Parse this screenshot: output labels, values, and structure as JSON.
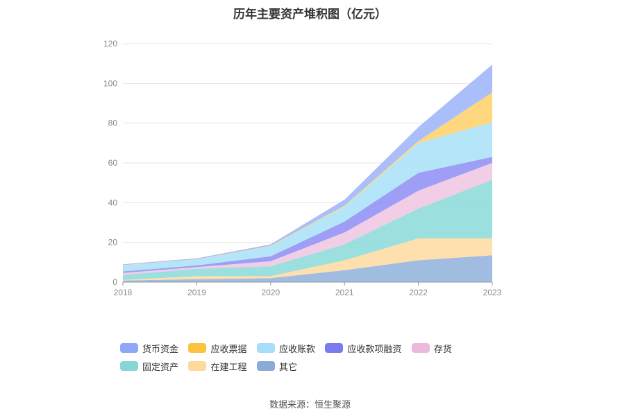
{
  "chart_data": {
    "type": "area",
    "stacked": true,
    "title": "历年主要资产堆积图（亿元）",
    "x": [
      "2018",
      "2019",
      "2020",
      "2021",
      "2022",
      "2023"
    ],
    "ylim": [
      0,
      120
    ],
    "yticks": [
      0,
      20,
      40,
      60,
      80,
      100,
      120
    ],
    "grid": true,
    "legend_position": "bottom",
    "series": [
      {
        "name": "其它",
        "color": "#8fb0dc",
        "values": [
          0.8,
          1.5,
          2.0,
          6.0,
          11.0,
          13.5
        ]
      },
      {
        "name": "在建工程",
        "color": "#fddba0",
        "values": [
          0.3,
          1.5,
          1.0,
          5.0,
          11.0,
          8.5
        ]
      },
      {
        "name": "固定资产",
        "color": "#8ad9d8",
        "values": [
          2.5,
          3.8,
          5.0,
          8.0,
          15.0,
          29.5
        ]
      },
      {
        "name": "存货",
        "color": "#efc5e2",
        "values": [
          1.0,
          0.8,
          2.5,
          6.0,
          9.0,
          8.5
        ]
      },
      {
        "name": "应收款项融资",
        "color": "#8d8df5",
        "values": [
          0.8,
          0.8,
          2.5,
          5.5,
          9.0,
          3.0
        ]
      },
      {
        "name": "应收账款",
        "color": "#a8e0f7",
        "values": [
          3.0,
          3.0,
          5.0,
          7.5,
          15.0,
          17.5
        ]
      },
      {
        "name": "应收票据",
        "color": "#fed068",
        "values": [
          0.2,
          0.1,
          0.3,
          0.5,
          1.0,
          15.0
        ]
      },
      {
        "name": "货币资金",
        "color": "#9bb4f8",
        "values": [
          0.4,
          0.5,
          0.7,
          3.0,
          7.0,
          14.0
        ]
      }
    ]
  },
  "legend": [
    {
      "label": "货币资金",
      "color": "#8ea7f6"
    },
    {
      "label": "应收票据",
      "color": "#fdc23e"
    },
    {
      "label": "应收账款",
      "color": "#a7defa"
    },
    {
      "label": "应收款项融资",
      "color": "#7b7bf0"
    },
    {
      "label": "存货",
      "color": "#ebb9de"
    },
    {
      "label": "固定资产",
      "color": "#86d6d6"
    },
    {
      "label": "在建工程",
      "color": "#fed99b"
    },
    {
      "label": "其它",
      "color": "#8aaad8"
    }
  ],
  "source": "数据来源：恒生聚源"
}
